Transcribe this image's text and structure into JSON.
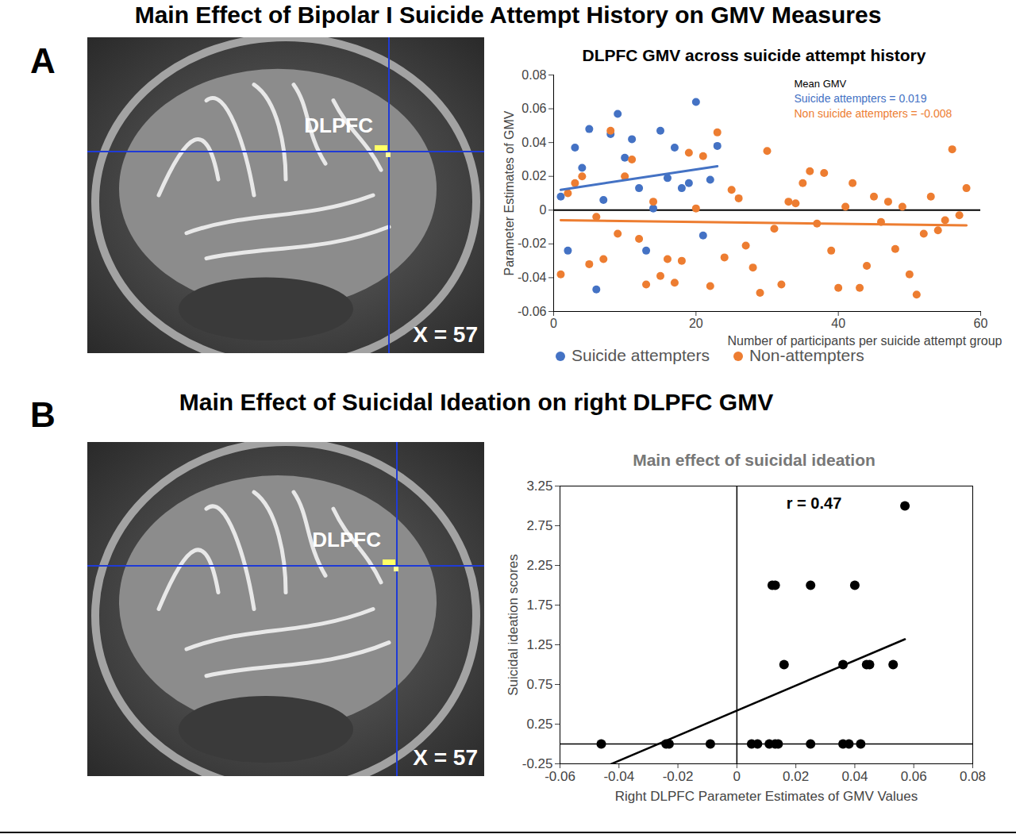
{
  "chart_data": [
    {
      "panel": "A",
      "heading": "Main Effect of Bipolar I Suicide Attempt History on GMV Measures",
      "image_labels": [
        "DLPFC",
        "X = 57"
      ],
      "type": "scatter",
      "title": "DLPFC GMV across suicide attempt history",
      "x_label": "Number of participants per suicide attempt group",
      "y_label": "Parameter Estimates of GMV",
      "xlim": [
        0,
        60
      ],
      "xticks": [
        0,
        20,
        40,
        60
      ],
      "ylim": [
        -0.06,
        0.08
      ],
      "yticks": [
        -0.06,
        -0.04,
        -0.02,
        0,
        0.02,
        0.04,
        0.06,
        0.08
      ],
      "grid": false,
      "legend": "bottom",
      "annotations": [
        "Mean GMV",
        "Suicide attempters = 0.019",
        "Non suicide attempters = -0.008"
      ],
      "series": [
        {
          "name": "Suicide attempters",
          "color": "#4472c4",
          "marker": "circle",
          "x": [
            1,
            2,
            3,
            4,
            5,
            6,
            7,
            8,
            9,
            10,
            11,
            12,
            13,
            14,
            15,
            16,
            17,
            18,
            19,
            20,
            21,
            22,
            23
          ],
          "values": [
            0.008,
            -0.024,
            0.037,
            0.025,
            0.048,
            -0.047,
            0.006,
            0.045,
            0.057,
            0.031,
            0.042,
            0.013,
            -0.024,
            0.001,
            0.047,
            0.019,
            0.037,
            0.013,
            0.016,
            0.064,
            -0.015,
            0.018,
            0.038
          ],
          "trend": {
            "x": [
              1,
              23
            ],
            "values": [
              0.012,
              0.026
            ]
          }
        },
        {
          "name": "Non-attempters",
          "color": "#ed7d31",
          "marker": "circle",
          "x": [
            1,
            2,
            3,
            4,
            5,
            6,
            7,
            8,
            9,
            10,
            11,
            12,
            13,
            14,
            15,
            16,
            17,
            18,
            19,
            20,
            21,
            22,
            23,
            24,
            25,
            26,
            27,
            28,
            29,
            30,
            31,
            32,
            33,
            34,
            35,
            36,
            37,
            38,
            39,
            40,
            41,
            42,
            43,
            44,
            45,
            46,
            47,
            48,
            49,
            50,
            51,
            52,
            53,
            54,
            55,
            56,
            57,
            58
          ],
          "values": [
            -0.038,
            0.01,
            0.016,
            0.02,
            -0.032,
            -0.004,
            -0.029,
            0.047,
            -0.014,
            0.02,
            0.03,
            -0.017,
            -0.044,
            0.005,
            -0.039,
            -0.029,
            -0.043,
            -0.03,
            0.034,
            0.001,
            0.032,
            -0.045,
            0.046,
            -0.028,
            0.012,
            0.007,
            -0.021,
            -0.034,
            -0.049,
            0.035,
            -0.011,
            -0.044,
            0.005,
            0.004,
            0.016,
            0.023,
            -0.008,
            0.022,
            -0.024,
            -0.046,
            0.002,
            0.016,
            -0.046,
            -0.033,
            0.008,
            -0.007,
            0.005,
            -0.023,
            0.002,
            -0.038,
            -0.05,
            -0.014,
            0.008,
            -0.012,
            -0.006,
            0.036,
            -0.003,
            0.013
          ],
          "trend": {
            "x": [
              1,
              58
            ],
            "values": [
              -0.006,
              -0.009
            ]
          }
        }
      ]
    },
    {
      "panel": "B",
      "heading": "Main Effect of Suicidal Ideation on right DLPFC GMV",
      "image_labels": [
        "DLPFC",
        "X = 57"
      ],
      "type": "scatter",
      "title": "Main effect of suicidal ideation",
      "x_label": "Right DLPFC Parameter Estimates of GMV Values",
      "y_label": "Suicidal ideation scores",
      "xlim": [
        -0.06,
        0.08
      ],
      "xticks": [
        -0.06,
        -0.04,
        -0.02,
        0,
        0.02,
        0.04,
        0.06,
        0.08
      ],
      "ylim": [
        -0.25,
        3.25
      ],
      "yticks": [
        -0.25,
        0.25,
        0.75,
        1.25,
        1.75,
        2.25,
        2.75,
        3.25
      ],
      "grid": false,
      "annotations": [
        "r = 0.47"
      ],
      "series": [
        {
          "color": "#000000",
          "marker": "circle",
          "x": [
            -0.046,
            -0.024,
            -0.023,
            -0.009,
            0.005,
            0.007,
            0.011,
            0.013,
            0.014,
            0.025,
            0.036,
            0.038,
            0.042,
            0.016,
            0.036,
            0.044,
            0.045,
            0.053,
            0.012,
            0.013,
            0.025,
            0.04,
            0.057
          ],
          "values": [
            0,
            0,
            0,
            0,
            0,
            0,
            0,
            0,
            0,
            0,
            0,
            0,
            0,
            1,
            1,
            1,
            1,
            1,
            2,
            2,
            2,
            2,
            3
          ],
          "trend": {
            "x": [
              -0.045,
              0.057
            ],
            "values": [
              -0.29,
              1.32
            ]
          }
        }
      ]
    }
  ]
}
